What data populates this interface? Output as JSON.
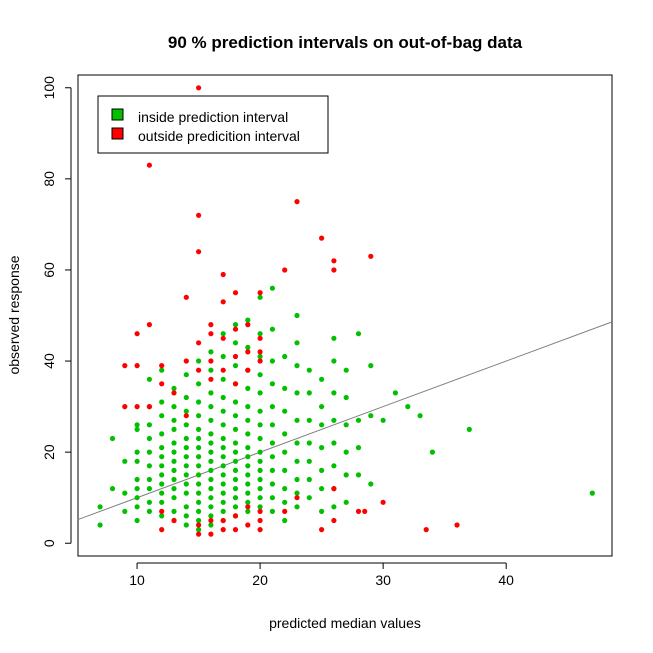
{
  "chart_data": {
    "type": "scatter",
    "title": "90 % prediction intervals on out-of-bag data",
    "xlabel": "predicted median values",
    "ylabel": "observed response",
    "xlim": [
      5.2,
      48.6
    ],
    "ylim": [
      -2.8,
      102.8
    ],
    "x_ticks": [
      10,
      20,
      30,
      40
    ],
    "y_ticks": [
      0,
      20,
      40,
      60,
      80,
      100
    ],
    "grid": false,
    "legend": {
      "position": "top-left",
      "entries": [
        {
          "label": "inside prediction interval",
          "color": "#00C000"
        },
        {
          "label": "outside predicition interval",
          "color": "#FF0000"
        }
      ]
    },
    "reference_line": {
      "type": "y=x",
      "color": "#808080"
    },
    "series": [
      {
        "name": "inside prediction interval",
        "color": "#00C000",
        "points": [
          [
            7,
            4
          ],
          [
            7,
            8
          ],
          [
            8,
            12
          ],
          [
            8,
            23
          ],
          [
            9,
            7
          ],
          [
            9,
            11
          ],
          [
            9,
            18
          ],
          [
            10,
            5
          ],
          [
            10,
            8
          ],
          [
            10,
            10
          ],
          [
            10,
            12
          ],
          [
            10,
            14
          ],
          [
            10,
            18
          ],
          [
            10,
            20
          ],
          [
            10,
            25
          ],
          [
            10,
            26
          ],
          [
            11,
            7
          ],
          [
            11,
            9
          ],
          [
            11,
            12
          ],
          [
            11,
            14
          ],
          [
            11,
            17
          ],
          [
            11,
            20
          ],
          [
            11,
            23
          ],
          [
            11,
            26
          ],
          [
            11,
            30
          ],
          [
            11,
            36
          ],
          [
            12,
            6
          ],
          [
            12,
            9
          ],
          [
            12,
            11
          ],
          [
            12,
            13
          ],
          [
            12,
            15
          ],
          [
            12,
            17
          ],
          [
            12,
            19
          ],
          [
            12,
            21
          ],
          [
            12,
            24
          ],
          [
            12,
            28
          ],
          [
            12,
            31
          ],
          [
            12,
            38
          ],
          [
            13,
            5
          ],
          [
            13,
            7
          ],
          [
            13,
            10
          ],
          [
            13,
            12
          ],
          [
            13,
            14
          ],
          [
            13,
            16
          ],
          [
            13,
            18
          ],
          [
            13,
            20
          ],
          [
            13,
            22
          ],
          [
            13,
            25
          ],
          [
            13,
            27
          ],
          [
            13,
            30
          ],
          [
            13,
            34
          ],
          [
            14,
            4
          ],
          [
            14,
            6
          ],
          [
            14,
            8
          ],
          [
            14,
            11
          ],
          [
            14,
            13
          ],
          [
            14,
            15
          ],
          [
            14,
            17
          ],
          [
            14,
            19
          ],
          [
            14,
            21
          ],
          [
            14,
            23
          ],
          [
            14,
            26
          ],
          [
            14,
            29
          ],
          [
            14,
            32
          ],
          [
            14,
            37
          ],
          [
            15,
            3
          ],
          [
            15,
            5
          ],
          [
            15,
            7
          ],
          [
            15,
            9
          ],
          [
            15,
            11
          ],
          [
            15,
            13
          ],
          [
            15,
            15
          ],
          [
            15,
            17
          ],
          [
            15,
            19
          ],
          [
            15,
            21
          ],
          [
            15,
            23
          ],
          [
            15,
            25
          ],
          [
            15,
            28
          ],
          [
            15,
            31
          ],
          [
            15,
            35
          ],
          [
            15,
            40
          ],
          [
            16,
            4
          ],
          [
            16,
            6
          ],
          [
            16,
            8
          ],
          [
            16,
            10
          ],
          [
            16,
            12
          ],
          [
            16,
            14
          ],
          [
            16,
            16
          ],
          [
            16,
            18
          ],
          [
            16,
            20
          ],
          [
            16,
            22
          ],
          [
            16,
            24
          ],
          [
            16,
            27
          ],
          [
            16,
            30
          ],
          [
            16,
            33
          ],
          [
            16,
            38
          ],
          [
            16,
            42
          ],
          [
            17,
            5
          ],
          [
            17,
            7
          ],
          [
            17,
            9
          ],
          [
            17,
            11
          ],
          [
            17,
            13
          ],
          [
            17,
            15
          ],
          [
            17,
            17
          ],
          [
            17,
            19
          ],
          [
            17,
            21
          ],
          [
            17,
            23
          ],
          [
            17,
            26
          ],
          [
            17,
            29
          ],
          [
            17,
            32
          ],
          [
            17,
            36
          ],
          [
            17,
            41
          ],
          [
            17,
            46
          ],
          [
            18,
            6
          ],
          [
            18,
            8
          ],
          [
            18,
            10
          ],
          [
            18,
            12
          ],
          [
            18,
            14
          ],
          [
            18,
            16
          ],
          [
            18,
            18
          ],
          [
            18,
            20
          ],
          [
            18,
            22
          ],
          [
            18,
            25
          ],
          [
            18,
            28
          ],
          [
            18,
            31
          ],
          [
            18,
            35
          ],
          [
            18,
            39
          ],
          [
            18,
            44
          ],
          [
            18,
            48
          ],
          [
            19,
            7
          ],
          [
            19,
            9
          ],
          [
            19,
            11
          ],
          [
            19,
            13
          ],
          [
            19,
            15
          ],
          [
            19,
            17
          ],
          [
            19,
            19
          ],
          [
            19,
            21
          ],
          [
            19,
            24
          ],
          [
            19,
            27
          ],
          [
            19,
            30
          ],
          [
            19,
            34
          ],
          [
            19,
            38
          ],
          [
            19,
            43
          ],
          [
            19,
            49
          ],
          [
            20,
            8
          ],
          [
            20,
            10
          ],
          [
            20,
            12
          ],
          [
            20,
            14
          ],
          [
            20,
            16
          ],
          [
            20,
            18
          ],
          [
            20,
            20
          ],
          [
            20,
            23
          ],
          [
            20,
            26
          ],
          [
            20,
            29
          ],
          [
            20,
            33
          ],
          [
            20,
            37
          ],
          [
            20,
            41
          ],
          [
            20,
            46
          ],
          [
            20,
            54
          ],
          [
            21,
            7
          ],
          [
            21,
            10
          ],
          [
            21,
            13
          ],
          [
            21,
            16
          ],
          [
            21,
            19
          ],
          [
            21,
            22
          ],
          [
            21,
            26
          ],
          [
            21,
            30
          ],
          [
            21,
            35
          ],
          [
            21,
            40
          ],
          [
            21,
            47
          ],
          [
            21,
            56
          ],
          [
            22,
            5
          ],
          [
            22,
            9
          ],
          [
            22,
            12
          ],
          [
            22,
            16
          ],
          [
            22,
            20
          ],
          [
            22,
            24
          ],
          [
            22,
            29
          ],
          [
            22,
            34
          ],
          [
            22,
            41
          ],
          [
            23,
            8
          ],
          [
            23,
            11
          ],
          [
            23,
            14
          ],
          [
            23,
            18
          ],
          [
            23,
            22
          ],
          [
            23,
            27
          ],
          [
            23,
            33
          ],
          [
            23,
            39
          ],
          [
            23,
            44
          ],
          [
            23,
            50
          ],
          [
            24,
            10
          ],
          [
            24,
            14
          ],
          [
            24,
            18
          ],
          [
            24,
            22
          ],
          [
            24,
            27
          ],
          [
            24,
            33
          ],
          [
            24,
            38
          ],
          [
            25,
            7
          ],
          [
            25,
            12
          ],
          [
            25,
            16
          ],
          [
            25,
            21
          ],
          [
            25,
            26
          ],
          [
            25,
            30
          ],
          [
            25,
            36
          ],
          [
            26,
            8
          ],
          [
            26,
            12
          ],
          [
            26,
            17
          ],
          [
            26,
            22
          ],
          [
            26,
            27
          ],
          [
            26,
            33
          ],
          [
            26,
            40
          ],
          [
            26,
            45
          ],
          [
            27,
            9
          ],
          [
            27,
            15
          ],
          [
            27,
            20
          ],
          [
            27,
            26
          ],
          [
            27,
            32
          ],
          [
            27,
            38
          ],
          [
            28,
            15
          ],
          [
            28,
            21
          ],
          [
            28,
            27
          ],
          [
            28,
            46
          ],
          [
            29,
            13
          ],
          [
            29,
            28
          ],
          [
            29,
            39
          ],
          [
            30,
            27
          ],
          [
            31,
            33
          ],
          [
            32,
            30
          ],
          [
            33,
            28
          ],
          [
            34,
            20
          ],
          [
            37,
            25
          ],
          [
            47,
            11
          ]
        ]
      },
      {
        "name": "outside predicition interval",
        "color": "#FF0000",
        "points": [
          [
            9,
            30
          ],
          [
            9,
            39
          ],
          [
            10,
            30
          ],
          [
            10,
            39
          ],
          [
            10,
            46
          ],
          [
            11,
            30
          ],
          [
            11,
            48
          ],
          [
            11,
            83
          ],
          [
            12,
            3
          ],
          [
            12,
            7
          ],
          [
            12,
            35
          ],
          [
            12,
            39
          ],
          [
            13,
            5
          ],
          [
            13,
            33
          ],
          [
            14,
            28
          ],
          [
            14,
            40
          ],
          [
            14,
            54
          ],
          [
            15,
            2
          ],
          [
            15,
            4
          ],
          [
            15,
            38
          ],
          [
            15,
            44
          ],
          [
            15,
            64
          ],
          [
            15,
            72
          ],
          [
            15,
            100
          ],
          [
            16,
            2
          ],
          [
            16,
            5
          ],
          [
            16,
            36
          ],
          [
            16,
            40
          ],
          [
            16,
            46
          ],
          [
            16,
            48
          ],
          [
            17,
            3
          ],
          [
            17,
            5
          ],
          [
            17,
            38
          ],
          [
            17,
            45
          ],
          [
            17,
            53
          ],
          [
            17,
            59
          ],
          [
            18,
            3
          ],
          [
            18,
            6
          ],
          [
            18,
            35
          ],
          [
            18,
            41
          ],
          [
            18,
            47
          ],
          [
            18,
            55
          ],
          [
            19,
            4
          ],
          [
            19,
            8
          ],
          [
            19,
            38
          ],
          [
            19,
            42
          ],
          [
            19,
            48
          ],
          [
            20,
            3
          ],
          [
            20,
            5
          ],
          [
            20,
            7
          ],
          [
            20,
            40
          ],
          [
            20,
            42
          ],
          [
            20,
            45
          ],
          [
            20,
            55
          ],
          [
            22,
            7
          ],
          [
            22,
            60
          ],
          [
            23,
            10
          ],
          [
            23,
            75
          ],
          [
            25,
            3
          ],
          [
            25,
            67
          ],
          [
            26,
            5
          ],
          [
            26,
            12
          ],
          [
            26,
            60
          ],
          [
            26,
            62
          ],
          [
            28,
            7
          ],
          [
            28.5,
            7
          ],
          [
            29,
            63
          ],
          [
            30,
            9
          ],
          [
            33.5,
            3
          ],
          [
            36,
            4
          ]
        ]
      }
    ]
  }
}
